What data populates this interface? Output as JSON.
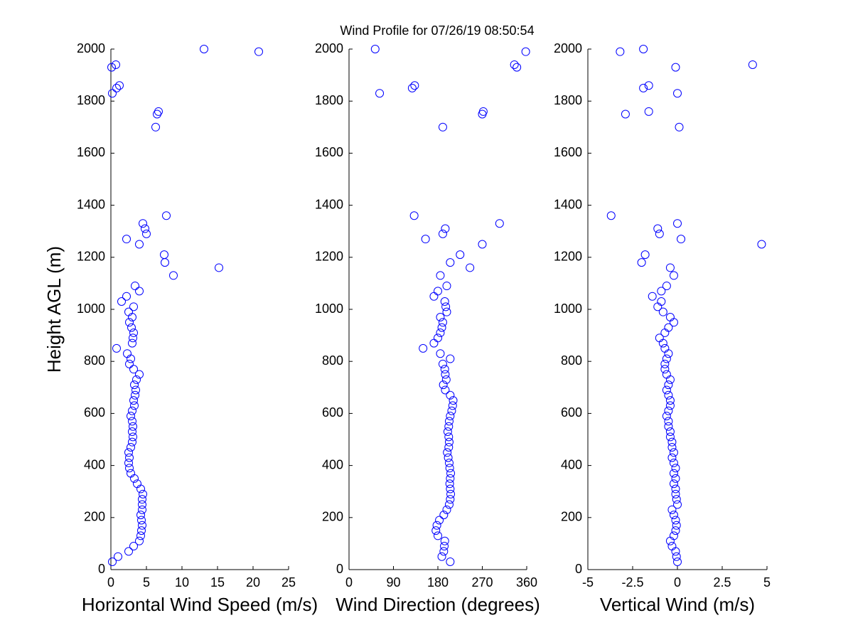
{
  "title": "Wind Profile for  07/26/19 08:50:54",
  "chart_data": [
    {
      "type": "scatter",
      "xlabel": "Horizontal Wind Speed (m/s)",
      "ylabel": "Height AGL (m)",
      "color": "#0000ff",
      "xlim": [
        0,
        25
      ],
      "xticks": [
        0,
        5,
        10,
        15,
        20,
        25
      ],
      "ylim": [
        0,
        2000
      ],
      "yticks": [
        0,
        200,
        400,
        600,
        800,
        1000,
        1200,
        1400,
        1600,
        1800,
        2000
      ],
      "x": [
        0.2,
        1,
        2.5,
        3.2,
        4,
        4.2,
        4.3,
        4.4,
        4.3,
        4.2,
        4.4,
        4.4,
        4.4,
        4.5,
        4.2,
        3.7,
        3.3,
        2.8,
        2.6,
        2.5,
        2.6,
        2.5,
        2.8,
        3.0,
        3.1,
        3.0,
        3.1,
        3.0,
        2.8,
        3.0,
        3.3,
        3.2,
        3.4,
        3.5,
        3.3,
        3.6,
        4.0,
        3.2,
        2.6,
        2.8,
        2.3,
        0.8,
        3.0,
        3.1,
        3.2,
        2.9,
        2.6,
        3.0,
        2.5,
        3.2,
        1.5,
        2.2,
        4.0,
        3.4,
        8.8,
        15.2,
        7.6,
        7.5,
        4.0,
        2.2,
        5.0,
        4.8,
        4.5,
        7.8,
        6.3,
        6.5,
        6.7,
        0.2,
        0.8,
        1.2,
        0.1,
        0.7,
        20.8,
        13.1
      ],
      "y": [
        30,
        50,
        70,
        90,
        110,
        130,
        150,
        170,
        190,
        210,
        230,
        250,
        270,
        290,
        310,
        330,
        350,
        370,
        390,
        410,
        430,
        450,
        470,
        490,
        510,
        530,
        550,
        570,
        590,
        610,
        630,
        650,
        670,
        690,
        710,
        730,
        750,
        770,
        790,
        810,
        830,
        850,
        870,
        890,
        910,
        930,
        950,
        970,
        990,
        1010,
        1030,
        1050,
        1070,
        1090,
        1130,
        1160,
        1180,
        1210,
        1250,
        1270,
        1290,
        1310,
        1330,
        1360,
        1700,
        1750,
        1760,
        1830,
        1850,
        1860,
        1930,
        1940,
        1990,
        2000
      ]
    },
    {
      "type": "scatter",
      "xlabel": "Wind Direction (degrees)",
      "color": "#0000ff",
      "xlim": [
        0,
        360
      ],
      "xticks": [
        0,
        90,
        180,
        270,
        360
      ],
      "ylim": [
        0,
        2000
      ],
      "yticks": [
        0,
        200,
        400,
        600,
        800,
        1000,
        1200,
        1400,
        1600,
        1800,
        2000
      ],
      "x": [
        205,
        188,
        192,
        193,
        194,
        180,
        176,
        178,
        183,
        192,
        198,
        203,
        205,
        206,
        205,
        204,
        205,
        206,
        204,
        203,
        201,
        199,
        202,
        203,
        202,
        200,
        202,
        203,
        205,
        208,
        210,
        211,
        205,
        195,
        191,
        197,
        195,
        194,
        190,
        205,
        185,
        150,
        172,
        180,
        185,
        188,
        190,
        185,
        198,
        196,
        194,
        172,
        180,
        198,
        185,
        245,
        205,
        225,
        270,
        155,
        190,
        195,
        305,
        132,
        190,
        270,
        272,
        62,
        128,
        133,
        340,
        335,
        358,
        53
      ],
      "y": [
        30,
        50,
        70,
        90,
        110,
        130,
        150,
        170,
        190,
        210,
        230,
        250,
        270,
        290,
        310,
        330,
        350,
        370,
        390,
        410,
        430,
        450,
        470,
        490,
        510,
        530,
        550,
        570,
        590,
        610,
        630,
        650,
        670,
        690,
        710,
        730,
        750,
        770,
        790,
        810,
        830,
        850,
        870,
        890,
        910,
        930,
        950,
        970,
        990,
        1010,
        1030,
        1050,
        1070,
        1090,
        1130,
        1160,
        1180,
        1210,
        1250,
        1270,
        1290,
        1310,
        1330,
        1360,
        1700,
        1750,
        1760,
        1830,
        1850,
        1860,
        1930,
        1940,
        1990,
        2000
      ]
    },
    {
      "type": "scatter",
      "xlabel": "Vertical Wind (m/s)",
      "color": "#0000ff",
      "xlim": [
        -5,
        5
      ],
      "xticks": [
        -5,
        -2.5,
        0,
        2.5,
        5
      ],
      "ylim": [
        0,
        2000
      ],
      "yticks": [
        0,
        200,
        400,
        600,
        800,
        1000,
        1200,
        1400,
        1600,
        1800,
        2000
      ],
      "x": [
        0.0,
        -0.05,
        -0.1,
        -0.3,
        -0.4,
        -0.2,
        -0.1,
        -0.05,
        -0.1,
        -0.2,
        -0.3,
        0.0,
        -0.05,
        -0.1,
        -0.1,
        -0.2,
        -0.1,
        -0.2,
        -0.1,
        -0.2,
        -0.3,
        -0.2,
        -0.3,
        -0.3,
        -0.4,
        -0.4,
        -0.5,
        -0.5,
        -0.6,
        -0.5,
        -0.4,
        -0.4,
        -0.5,
        -0.6,
        -0.5,
        -0.4,
        -0.6,
        -0.7,
        -0.7,
        -0.6,
        -0.5,
        -0.7,
        -0.8,
        -1.0,
        -0.7,
        -0.5,
        -0.2,
        -0.4,
        -0.8,
        -1.1,
        -0.9,
        -1.4,
        -0.9,
        -0.6,
        -0.2,
        -0.4,
        -2.0,
        -1.8,
        4.7,
        0.2,
        -1.0,
        -1.1,
        0.0,
        -3.7,
        0.1,
        -2.9,
        -1.6,
        0.0,
        -1.9,
        -1.6,
        -0.1,
        4.2,
        -3.2,
        -1.9
      ],
      "y": [
        30,
        50,
        70,
        90,
        110,
        130,
        150,
        170,
        190,
        210,
        230,
        250,
        270,
        290,
        310,
        330,
        350,
        370,
        390,
        410,
        430,
        450,
        470,
        490,
        510,
        530,
        550,
        570,
        590,
        610,
        630,
        650,
        670,
        690,
        710,
        730,
        750,
        770,
        790,
        810,
        830,
        850,
        870,
        890,
        910,
        930,
        950,
        970,
        990,
        1010,
        1030,
        1050,
        1070,
        1090,
        1130,
        1160,
        1180,
        1210,
        1250,
        1270,
        1290,
        1310,
        1330,
        1360,
        1700,
        1750,
        1760,
        1830,
        1850,
        1860,
        1930,
        1940,
        1990,
        2000
      ]
    }
  ]
}
